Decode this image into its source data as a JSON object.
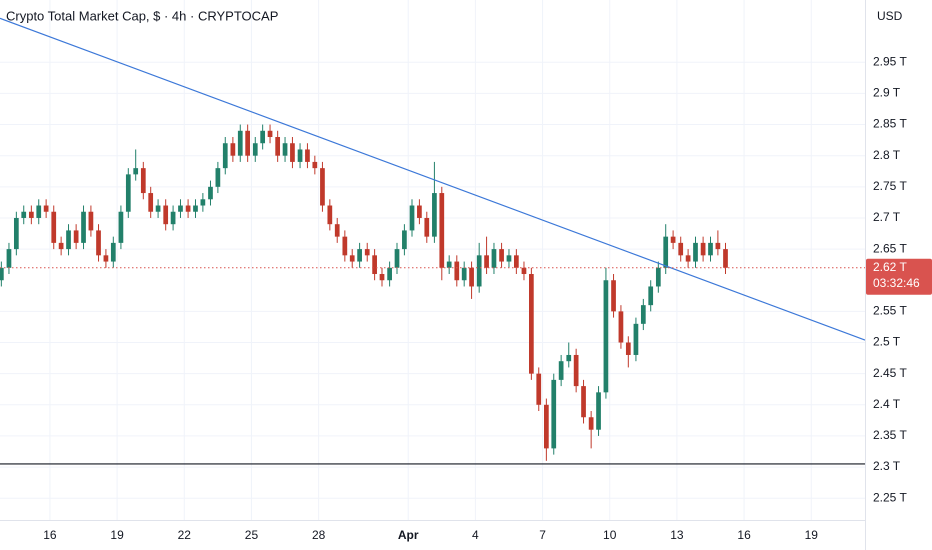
{
  "chart_data": {
    "type": "candlestick",
    "title": "Crypto Total Market Cap, $ · 4h · CRYPTOCAP",
    "y_unit_label": "USD",
    "up_color": "#22806a",
    "down_color": "#c0392b",
    "xlim": [
      13.77,
      52.4
    ],
    "ylim": [
      2.215,
      3.05
    ],
    "xticks": [
      16,
      19,
      22,
      25,
      28,
      {
        "value": 32,
        "label": "Apr"
      },
      {
        "value": 35,
        "label": "4"
      },
      {
        "value": 38,
        "label": "7"
      },
      {
        "value": 41,
        "label": "10"
      },
      {
        "value": 44,
        "label": "13"
      },
      {
        "value": 47,
        "label": "16"
      },
      {
        "value": 50,
        "label": "19"
      }
    ],
    "yticks": [
      {
        "value": 2.25,
        "label": "2.25 T"
      },
      {
        "value": 2.3,
        "label": "2.3 T"
      },
      {
        "value": 2.35,
        "label": "2.35 T"
      },
      {
        "value": 2.4,
        "label": "2.4 T"
      },
      {
        "value": 2.45,
        "label": "2.45 T"
      },
      {
        "value": 2.5,
        "label": "2.5 T"
      },
      {
        "value": 2.55,
        "label": "2.55 T"
      },
      {
        "value": 2.65,
        "label": "2.65 T"
      },
      {
        "value": 2.7,
        "label": "2.7 T"
      },
      {
        "value": 2.75,
        "label": "2.75 T"
      },
      {
        "value": 2.8,
        "label": "2.8 T"
      },
      {
        "value": 2.85,
        "label": "2.85 T"
      },
      {
        "value": 2.9,
        "label": "2.9 T"
      },
      {
        "value": 2.95,
        "label": "2.95 T"
      }
    ],
    "grid": true,
    "x": [
      13.83,
      14.17,
      14.5,
      14.83,
      15.17,
      15.5,
      15.83,
      16.17,
      16.5,
      16.83,
      17.17,
      17.5,
      17.83,
      18.17,
      18.5,
      18.83,
      19.17,
      19.5,
      19.83,
      20.17,
      20.5,
      20.83,
      21.17,
      21.5,
      21.83,
      22.17,
      22.5,
      22.83,
      23.17,
      23.5,
      23.83,
      24.17,
      24.5,
      24.83,
      25.17,
      25.5,
      25.83,
      26.17,
      26.5,
      26.83,
      27.17,
      27.5,
      27.83,
      28.17,
      28.5,
      28.83,
      29.17,
      29.5,
      29.83,
      30.17,
      30.5,
      30.83,
      31.17,
      31.5,
      31.83,
      32.17,
      32.5,
      32.83,
      33.17,
      33.5,
      33.83,
      34.17,
      34.5,
      34.83,
      35.17,
      35.5,
      35.83,
      36.17,
      36.5,
      36.83,
      37.17,
      37.5,
      37.83,
      38.17,
      38.5,
      38.83,
      39.17,
      39.5,
      39.83,
      40.17,
      40.5,
      40.83,
      41.17,
      41.5,
      41.83,
      42.17,
      42.5,
      42.83,
      43.17,
      43.5,
      43.83,
      44.17,
      44.5,
      44.83,
      45.17,
      45.5,
      45.83,
      46.17
    ],
    "open": [
      2.6,
      2.62,
      2.65,
      2.7,
      2.71,
      2.7,
      2.72,
      2.71,
      2.66,
      2.65,
      2.68,
      2.66,
      2.71,
      2.68,
      2.64,
      2.63,
      2.66,
      2.71,
      2.77,
      2.78,
      2.74,
      2.71,
      2.72,
      2.69,
      2.71,
      2.72,
      2.71,
      2.72,
      2.73,
      2.75,
      2.78,
      2.82,
      2.8,
      2.84,
      2.8,
      2.82,
      2.84,
      2.83,
      2.8,
      2.82,
      2.79,
      2.81,
      2.79,
      2.78,
      2.72,
      2.69,
      2.67,
      2.64,
      2.63,
      2.65,
      2.64,
      2.61,
      2.6,
      2.62,
      2.65,
      2.68,
      2.72,
      2.7,
      2.67,
      2.74,
      2.62,
      2.63,
      2.6,
      2.62,
      2.59,
      2.64,
      2.62,
      2.65,
      2.63,
      2.64,
      2.62,
      2.61,
      2.45,
      2.4,
      2.33,
      2.44,
      2.47,
      2.48,
      2.43,
      2.38,
      2.36,
      2.42,
      2.6,
      2.55,
      2.5,
      2.48,
      2.53,
      2.56,
      2.59,
      2.62,
      2.67,
      2.66,
      2.64,
      2.63,
      2.66,
      2.64,
      2.66,
      2.65
    ],
    "high": [
      2.63,
      2.66,
      2.71,
      2.72,
      2.72,
      2.73,
      2.73,
      2.72,
      2.67,
      2.69,
      2.69,
      2.72,
      2.72,
      2.69,
      2.65,
      2.67,
      2.72,
      2.78,
      2.81,
      2.79,
      2.75,
      2.73,
      2.73,
      2.72,
      2.73,
      2.73,
      2.73,
      2.74,
      2.76,
      2.79,
      2.83,
      2.83,
      2.85,
      2.85,
      2.83,
      2.85,
      2.85,
      2.84,
      2.83,
      2.83,
      2.82,
      2.82,
      2.8,
      2.79,
      2.73,
      2.7,
      2.68,
      2.65,
      2.66,
      2.66,
      2.65,
      2.62,
      2.63,
      2.66,
      2.69,
      2.73,
      2.73,
      2.71,
      2.79,
      2.75,
      2.64,
      2.64,
      2.63,
      2.63,
      2.66,
      2.67,
      2.66,
      2.66,
      2.65,
      2.65,
      2.63,
      2.62,
      2.46,
      2.41,
      2.45,
      2.48,
      2.5,
      2.49,
      2.44,
      2.39,
      2.43,
      2.62,
      2.61,
      2.56,
      2.51,
      2.54,
      2.57,
      2.6,
      2.63,
      2.69,
      2.68,
      2.67,
      2.65,
      2.67,
      2.67,
      2.67,
      2.68,
      2.66
    ],
    "low": [
      2.59,
      2.61,
      2.64,
      2.69,
      2.69,
      2.69,
      2.7,
      2.65,
      2.64,
      2.64,
      2.65,
      2.65,
      2.67,
      2.63,
      2.62,
      2.62,
      2.65,
      2.7,
      2.76,
      2.73,
      2.7,
      2.7,
      2.68,
      2.68,
      2.7,
      2.7,
      2.7,
      2.71,
      2.72,
      2.74,
      2.77,
      2.79,
      2.79,
      2.79,
      2.79,
      2.81,
      2.82,
      2.79,
      2.79,
      2.78,
      2.78,
      2.78,
      2.77,
      2.71,
      2.68,
      2.66,
      2.63,
      2.62,
      2.62,
      2.63,
      2.6,
      2.59,
      2.59,
      2.61,
      2.64,
      2.67,
      2.69,
      2.66,
      2.66,
      2.6,
      2.61,
      2.59,
      2.59,
      2.57,
      2.58,
      2.61,
      2.61,
      2.62,
      2.62,
      2.61,
      2.6,
      2.44,
      2.39,
      2.31,
      2.32,
      2.43,
      2.46,
      2.42,
      2.37,
      2.33,
      2.35,
      2.41,
      2.54,
      2.49,
      2.46,
      2.47,
      2.52,
      2.55,
      2.58,
      2.61,
      2.65,
      2.63,
      2.62,
      2.62,
      2.63,
      2.63,
      2.64,
      2.61
    ],
    "close": [
      2.62,
      2.65,
      2.7,
      2.71,
      2.7,
      2.72,
      2.71,
      2.66,
      2.65,
      2.68,
      2.66,
      2.71,
      2.68,
      2.64,
      2.63,
      2.66,
      2.71,
      2.77,
      2.78,
      2.74,
      2.71,
      2.72,
      2.69,
      2.71,
      2.72,
      2.71,
      2.72,
      2.73,
      2.75,
      2.78,
      2.82,
      2.8,
      2.84,
      2.8,
      2.82,
      2.84,
      2.83,
      2.8,
      2.82,
      2.79,
      2.81,
      2.79,
      2.78,
      2.72,
      2.69,
      2.67,
      2.64,
      2.63,
      2.65,
      2.64,
      2.61,
      2.6,
      2.62,
      2.65,
      2.68,
      2.72,
      2.7,
      2.67,
      2.74,
      2.62,
      2.63,
      2.6,
      2.62,
      2.59,
      2.64,
      2.62,
      2.65,
      2.63,
      2.64,
      2.62,
      2.61,
      2.45,
      2.4,
      2.33,
      2.44,
      2.47,
      2.48,
      2.43,
      2.38,
      2.36,
      2.42,
      2.6,
      2.55,
      2.5,
      2.48,
      2.53,
      2.56,
      2.59,
      2.62,
      2.67,
      2.66,
      2.64,
      2.63,
      2.66,
      2.64,
      2.66,
      2.65,
      2.62
    ],
    "trendline": {
      "x": [
        13.77,
        52.4
      ],
      "y": [
        3.0206,
        2.504
      ],
      "color": "#3c78d8"
    },
    "support": {
      "value": 2.305,
      "color": "#131722"
    },
    "last_price": {
      "value": 2.62,
      "label": "2.62 T",
      "countdown": "03:32:46",
      "color": "#d9534f"
    }
  }
}
